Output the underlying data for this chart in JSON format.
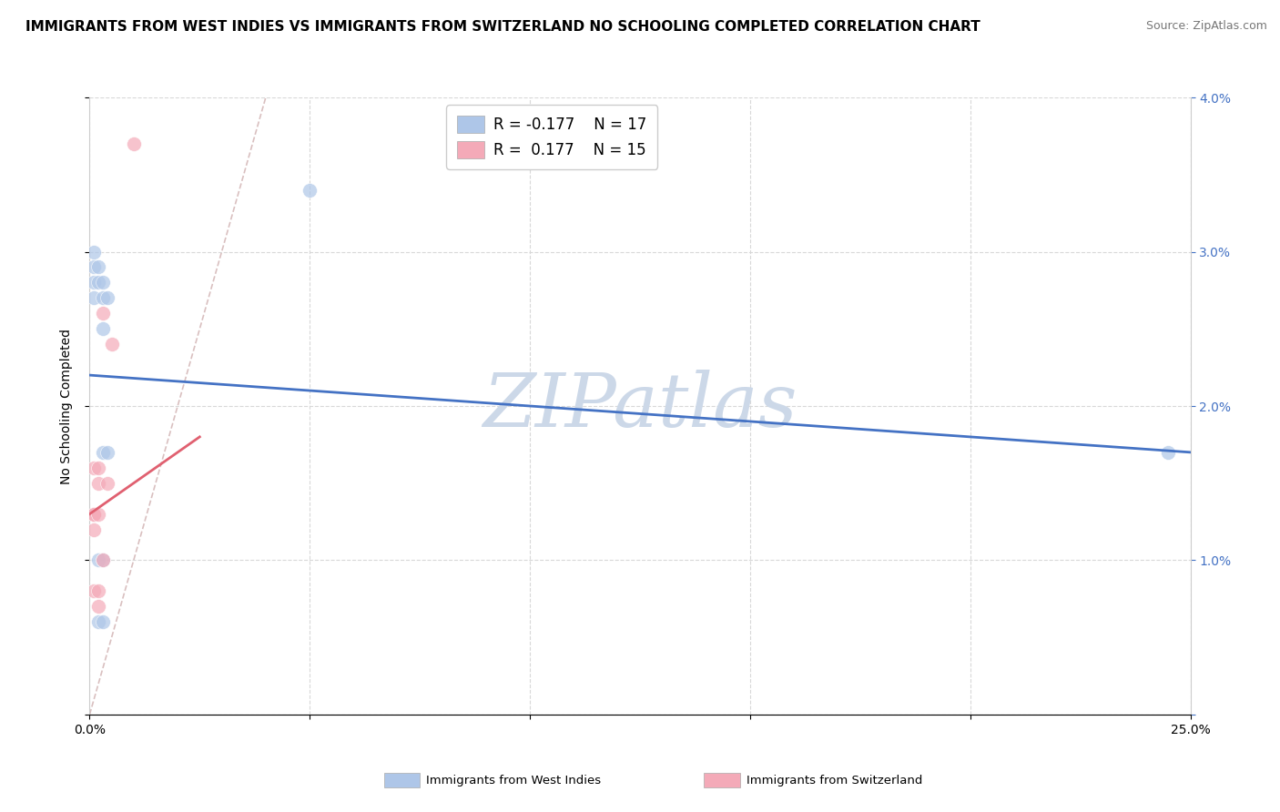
{
  "title": "IMMIGRANTS FROM WEST INDIES VS IMMIGRANTS FROM SWITZERLAND NO SCHOOLING COMPLETED CORRELATION CHART",
  "source": "Source: ZipAtlas.com",
  "ylabel": "No Schooling Completed",
  "xlim": [
    0.0,
    0.25
  ],
  "ylim": [
    0.0,
    0.04
  ],
  "legend_blue_label": "Immigrants from West Indies",
  "legend_pink_label": "Immigrants from Switzerland",
  "watermark": "ZIPatlas",
  "blue_scatter": [
    [
      0.001,
      0.03
    ],
    [
      0.001,
      0.029
    ],
    [
      0.002,
      0.029
    ],
    [
      0.001,
      0.028
    ],
    [
      0.002,
      0.028
    ],
    [
      0.003,
      0.028
    ],
    [
      0.001,
      0.027
    ],
    [
      0.003,
      0.027
    ],
    [
      0.004,
      0.027
    ],
    [
      0.003,
      0.025
    ],
    [
      0.05,
      0.034
    ],
    [
      0.003,
      0.017
    ],
    [
      0.004,
      0.017
    ],
    [
      0.002,
      0.01
    ],
    [
      0.003,
      0.01
    ],
    [
      0.002,
      0.006
    ],
    [
      0.003,
      0.006
    ],
    [
      0.245,
      0.017
    ]
  ],
  "pink_scatter": [
    [
      0.01,
      0.037
    ],
    [
      0.003,
      0.026
    ],
    [
      0.005,
      0.024
    ],
    [
      0.001,
      0.016
    ],
    [
      0.002,
      0.016
    ],
    [
      0.002,
      0.015
    ],
    [
      0.004,
      0.015
    ],
    [
      0.001,
      0.013
    ],
    [
      0.001,
      0.013
    ],
    [
      0.002,
      0.013
    ],
    [
      0.001,
      0.012
    ],
    [
      0.003,
      0.01
    ],
    [
      0.001,
      0.008
    ],
    [
      0.002,
      0.008
    ],
    [
      0.002,
      0.007
    ]
  ],
  "blue_line_x": [
    0.0,
    0.25
  ],
  "blue_line_y": [
    0.022,
    0.017
  ],
  "pink_line_x": [
    0.0,
    0.025
  ],
  "pink_line_y": [
    0.013,
    0.018
  ],
  "diag_line_color": "#d0b0b0",
  "blue_color": "#aec6e8",
  "pink_color": "#f4aab8",
  "blue_line_color": "#4472c4",
  "pink_line_color": "#e06070",
  "grid_color": "#d8d8d8",
  "background_color": "#ffffff",
  "title_fontsize": 11,
  "source_fontsize": 9,
  "axis_label_fontsize": 10,
  "tick_fontsize": 10,
  "right_tick_color": "#4472c4",
  "watermark_fontsize": 60,
  "watermark_color": "#ccd8e8",
  "marker_size": 130,
  "marker_alpha": 0.7
}
